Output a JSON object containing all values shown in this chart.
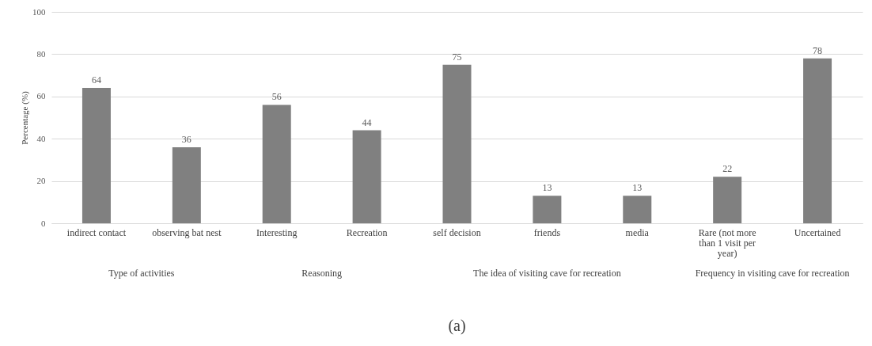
{
  "chart_data": {
    "type": "bar",
    "ylabel": "Percentage (%)",
    "categories": [
      "indirect contact",
      "observing bat nest",
      "Interesting",
      "Recreation",
      "self decision",
      "friends",
      "media",
      "Rare (not more than 1 visit per year)",
      "Uncertained"
    ],
    "values": [
      64,
      36,
      56,
      44,
      75,
      13,
      13,
      22,
      78
    ],
    "color": "#808080",
    "ylim": [
      0,
      100
    ],
    "yticks": [
      0,
      20,
      40,
      60,
      80,
      100
    ],
    "grid": "y",
    "data_labels": true,
    "annotations": [
      "Type of activities",
      "Reasoning",
      "The idea of visiting cave for recreation",
      "Frequency in visiting cave for recreation",
      "(a)"
    ]
  }
}
